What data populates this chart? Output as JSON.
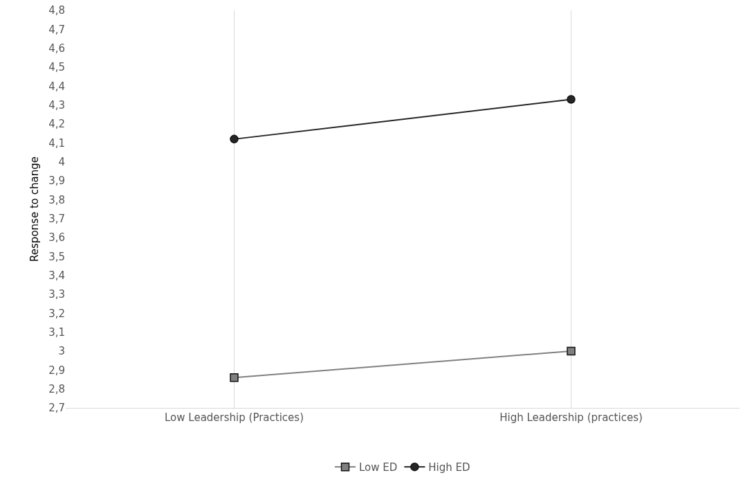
{
  "chart_data": {
    "type": "line",
    "ylabel": "Response to change",
    "categories": [
      "Low Leadership (Practices)",
      "High Leadership (practices)"
    ],
    "series": [
      {
        "name": "Low ED",
        "color": "#808080",
        "marker": "square",
        "values": [
          2.86,
          3.0
        ]
      },
      {
        "name": "High ED",
        "color": "#262626",
        "marker": "circle",
        "values": [
          4.12,
          4.33
        ]
      }
    ],
    "ylim": [
      2.7,
      4.8
    ],
    "yticks": [
      {
        "value": 2.7,
        "label": "2,7"
      },
      {
        "value": 2.8,
        "label": "2,8"
      },
      {
        "value": 2.9,
        "label": "2,9"
      },
      3,
      {
        "value": 3.1,
        "label": "3,1"
      },
      {
        "value": 3.2,
        "label": "3,2"
      },
      {
        "value": 3.3,
        "label": "3,3"
      },
      {
        "value": 3.4,
        "label": "3,4"
      },
      {
        "value": 3.5,
        "label": "3,5"
      },
      {
        "value": 3.6,
        "label": "3,6"
      },
      {
        "value": 3.7,
        "label": "3,7"
      },
      {
        "value": 3.8,
        "label": "3,8"
      },
      {
        "value": 3.9,
        "label": "3,9"
      },
      4,
      {
        "value": 4.1,
        "label": "4,1"
      },
      {
        "value": 4.2,
        "label": "4,2"
      },
      {
        "value": 4.3,
        "label": "4,3"
      },
      {
        "value": 4.4,
        "label": "4,4"
      },
      {
        "value": 4.5,
        "label": "4,5"
      },
      {
        "value": 4.6,
        "label": "4,6"
      },
      {
        "value": 4.7,
        "label": "4,7"
      },
      {
        "value": 4.8,
        "label": "4,8"
      }
    ],
    "grid": "x",
    "legend": "bottom",
    "line_style": "solid"
  }
}
